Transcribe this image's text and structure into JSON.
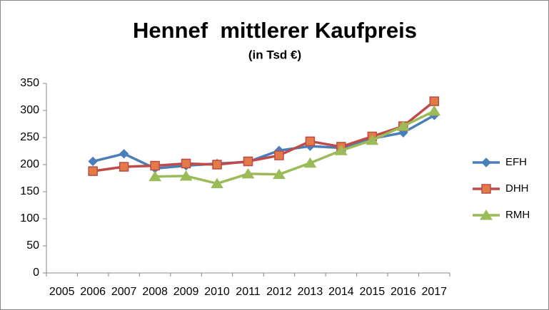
{
  "chart_data": {
    "type": "line",
    "title": "Hennef  mittlerer Kaufpreis",
    "subtitle": "(in Tsd €)",
    "categories": [
      "2005",
      "2006",
      "2007",
      "2008",
      "2009",
      "2010",
      "2011",
      "2012",
      "2013",
      "2014",
      "2015",
      "2016",
      "2017"
    ],
    "series": [
      {
        "name": "EFH",
        "color": "#4a7ebb",
        "marker": "diamond",
        "values": [
          null,
          206,
          220,
          193,
          198,
          202,
          205,
          226,
          234,
          231,
          248,
          259,
          291
        ]
      },
      {
        "name": "DHH",
        "color": "#be4b48",
        "marker": "square",
        "values": [
          null,
          188,
          196,
          198,
          202,
          200,
          206,
          217,
          243,
          233,
          252,
          271,
          317
        ]
      },
      {
        "name": "RMH",
        "color": "#9bbb59",
        "marker": "triangle",
        "values": [
          null,
          null,
          null,
          178,
          179,
          165,
          183,
          182,
          203,
          226,
          245,
          271,
          299
        ]
      }
    ],
    "ylim": [
      0,
      350
    ],
    "yticks": [
      0,
      50,
      100,
      150,
      200,
      250,
      300,
      350
    ],
    "grid": false,
    "legend": "right"
  }
}
